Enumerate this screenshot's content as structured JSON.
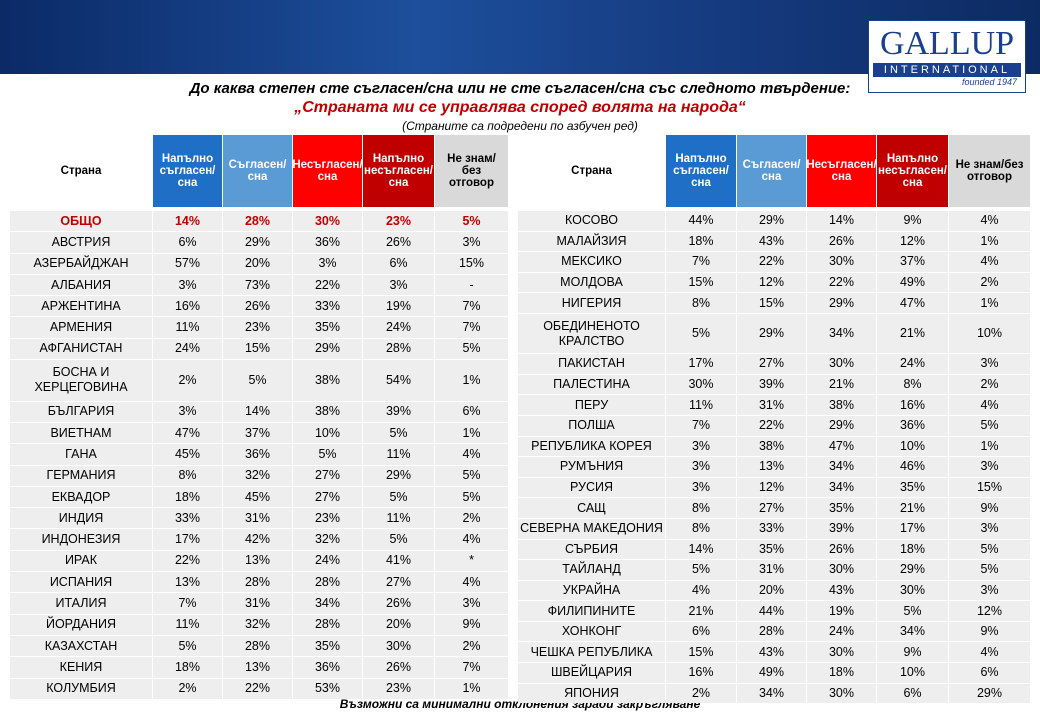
{
  "header": {
    "logo": {
      "name": "GALLUP",
      "sub": "INTERNATIONAL",
      "founded": "founded 1947"
    },
    "title": "До каква степен сте съгласен/сна или не сте съгласен/сна със следното твърдение:",
    "statement": "„Страната ми се управлява според волята на народа“",
    "note": "(Страните са подредени по азбучен ред)"
  },
  "columns": [
    "Страна",
    "Напълно съгласен/сна",
    "Съгласен/сна",
    "Несъгласен/сна",
    "Напълно несъгласен/сна",
    "Не знам/без отговор"
  ],
  "tables": [
    {
      "rows": [
        [
          "ОБЩО",
          "14%",
          "28%",
          "30%",
          "23%",
          "5%"
        ],
        [
          "АВСТРИЯ",
          "6%",
          "29%",
          "36%",
          "26%",
          "3%"
        ],
        [
          "АЗЕРБАЙДЖАН",
          "57%",
          "20%",
          "3%",
          "6%",
          "15%"
        ],
        [
          "АЛБАНИЯ",
          "3%",
          "73%",
          "22%",
          "3%",
          "-"
        ],
        [
          "АРЖЕНТИНА",
          "16%",
          "26%",
          "33%",
          "19%",
          "7%"
        ],
        [
          "АРМЕНИЯ",
          "11%",
          "23%",
          "35%",
          "24%",
          "7%"
        ],
        [
          "АФГАНИСТАН",
          "24%",
          "15%",
          "29%",
          "28%",
          "5%"
        ],
        [
          "БОСНА И ХЕРЦЕГОВИНА",
          "2%",
          "5%",
          "38%",
          "54%",
          "1%"
        ],
        [
          "БЪЛГАРИЯ",
          "3%",
          "14%",
          "38%",
          "39%",
          "6%"
        ],
        [
          "ВИЕТНАМ",
          "47%",
          "37%",
          "10%",
          "5%",
          "1%"
        ],
        [
          "ГАНА",
          "45%",
          "36%",
          "5%",
          "11%",
          "4%"
        ],
        [
          "ГЕРМАНИЯ",
          "8%",
          "32%",
          "27%",
          "29%",
          "5%"
        ],
        [
          "ЕКВАДОР",
          "18%",
          "45%",
          "27%",
          "5%",
          "5%"
        ],
        [
          "ИНДИЯ",
          "33%",
          "31%",
          "23%",
          "11%",
          "2%"
        ],
        [
          "ИНДОНЕЗИЯ",
          "17%",
          "42%",
          "32%",
          "5%",
          "4%"
        ],
        [
          "ИРАК",
          "22%",
          "13%",
          "24%",
          "41%",
          "*"
        ],
        [
          "ИСПАНИЯ",
          "13%",
          "28%",
          "28%",
          "27%",
          "4%"
        ],
        [
          "ИТАЛИЯ",
          "7%",
          "31%",
          "34%",
          "26%",
          "3%"
        ],
        [
          "ЙОРДАНИЯ",
          "11%",
          "32%",
          "28%",
          "20%",
          "9%"
        ],
        [
          "КАЗАХСТАН",
          "5%",
          "28%",
          "35%",
          "30%",
          "2%"
        ],
        [
          "КЕНИЯ",
          "18%",
          "13%",
          "36%",
          "26%",
          "7%"
        ],
        [
          "КОЛУМБИЯ",
          "2%",
          "22%",
          "53%",
          "23%",
          "1%"
        ]
      ]
    },
    {
      "rows": [
        [
          "КОСОВО",
          "44%",
          "29%",
          "14%",
          "9%",
          "4%"
        ],
        [
          "МАЛАЙЗИЯ",
          "18%",
          "43%",
          "26%",
          "12%",
          "1%"
        ],
        [
          "МЕКСИКО",
          "7%",
          "22%",
          "30%",
          "37%",
          "4%"
        ],
        [
          "МОЛДОВА",
          "15%",
          "12%",
          "22%",
          "49%",
          "2%"
        ],
        [
          "НИГЕРИЯ",
          "8%",
          "15%",
          "29%",
          "47%",
          "1%"
        ],
        [
          "ОБЕДИНЕНОТО КРАЛСТВО",
          "5%",
          "29%",
          "34%",
          "21%",
          "10%"
        ],
        [
          "ПАКИСТАН",
          "17%",
          "27%",
          "30%",
          "24%",
          "3%"
        ],
        [
          "ПАЛЕСТИНА",
          "30%",
          "39%",
          "21%",
          "8%",
          "2%"
        ],
        [
          "ПЕРУ",
          "11%",
          "31%",
          "38%",
          "16%",
          "4%"
        ],
        [
          "ПОЛША",
          "7%",
          "22%",
          "29%",
          "36%",
          "5%"
        ],
        [
          "РЕПУБЛИКА КОРЕЯ",
          "3%",
          "38%",
          "47%",
          "10%",
          "1%"
        ],
        [
          "РУМЪНИЯ",
          "3%",
          "13%",
          "34%",
          "46%",
          "3%"
        ],
        [
          "РУСИЯ",
          "3%",
          "12%",
          "34%",
          "35%",
          "15%"
        ],
        [
          "САЩ",
          "8%",
          "27%",
          "35%",
          "21%",
          "9%"
        ],
        [
          "СЕВЕРНА МАКЕДОНИЯ",
          "8%",
          "33%",
          "39%",
          "17%",
          "3%"
        ],
        [
          "СЪРБИЯ",
          "14%",
          "35%",
          "26%",
          "18%",
          "5%"
        ],
        [
          "ТАЙЛАНД",
          "5%",
          "31%",
          "30%",
          "29%",
          "5%"
        ],
        [
          "УКРАЙНА",
          "4%",
          "20%",
          "43%",
          "30%",
          "3%"
        ],
        [
          "ФИЛИПИНИТЕ",
          "21%",
          "44%",
          "19%",
          "5%",
          "12%"
        ],
        [
          "ХОНКОНГ",
          "6%",
          "28%",
          "24%",
          "34%",
          "9%"
        ],
        [
          "ЧЕШКА РЕПУБЛИКА",
          "15%",
          "43%",
          "30%",
          "9%",
          "4%"
        ],
        [
          "ШВЕЙЦАРИЯ",
          "16%",
          "49%",
          "18%",
          "10%",
          "6%"
        ],
        [
          "ЯПОНИЯ",
          "2%",
          "34%",
          "30%",
          "6%",
          "29%"
        ]
      ]
    }
  ],
  "footer": "Възможни са минимални отклонения заради закръгляване"
}
